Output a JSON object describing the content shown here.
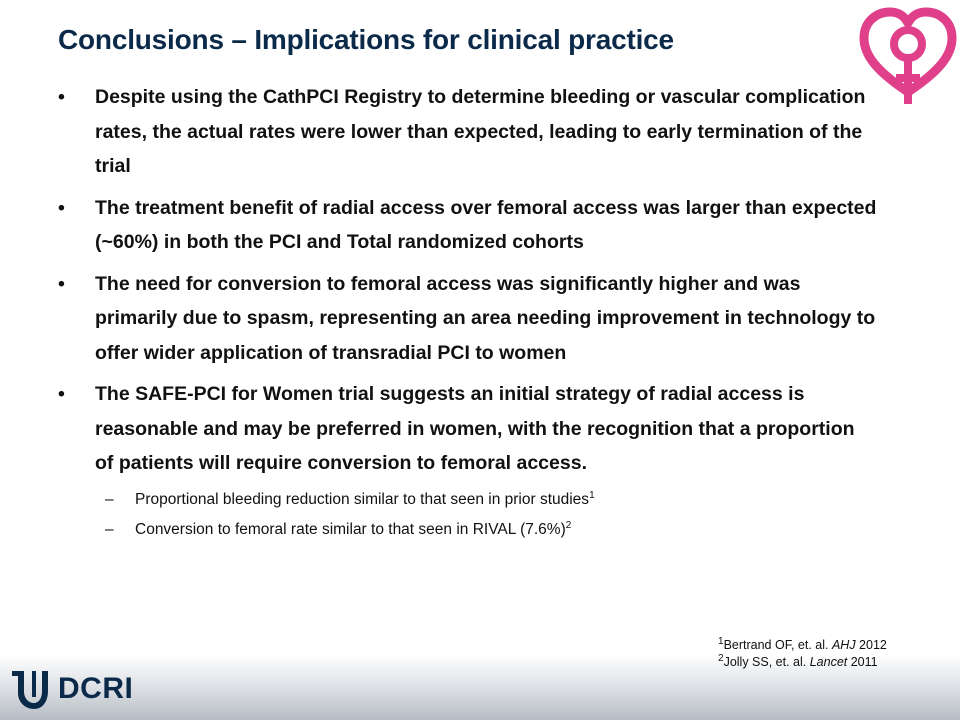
{
  "title": "Conclusions – Implications for clinical practice",
  "bullets": [
    "Despite using the CathPCI Registry to determine bleeding or vascular complication rates, the actual rates were lower than expected, leading to early termination of the trial",
    "The treatment benefit of radial access over femoral access was larger than expected (~60%) in both the PCI and Total randomized cohorts",
    "The need for conversion to femoral access was significantly higher and was primarily due to spasm, representing an area needing improvement in technology to offer wider application of transradial PCI to women",
    "The SAFE-PCI for Women trial suggests an initial strategy of radial access is reasonable and may be preferred in women, with the recognition that a proportion of patients will require conversion to femoral access."
  ],
  "sub_bullets": [
    {
      "text": "Proportional bleeding reduction similar to that seen in prior studies",
      "sup": "1"
    },
    {
      "text": "Conversion to femoral rate similar to that seen in RIVAL (7.6%)",
      "sup": "2"
    }
  ],
  "bullet_symbol": "•",
  "dash_symbol": "–",
  "references": [
    {
      "num": "1",
      "authors": "Bertrand OF, et. al. ",
      "journal": "AHJ",
      "year": " 2012"
    },
    {
      "num": "2",
      "authors": "Jolly SS, et. al. ",
      "journal": "Lancet",
      "year": " 2011"
    }
  ],
  "footer": {
    "logo_text": "DCRI"
  },
  "colors": {
    "title": "#0b2a4a",
    "logo_pink": "#e0408a",
    "dcri_navy": "#0b2a4a"
  },
  "icons": {
    "top_right": "heart-venus-logo-icon",
    "footer": "duke-d-logo-icon"
  }
}
